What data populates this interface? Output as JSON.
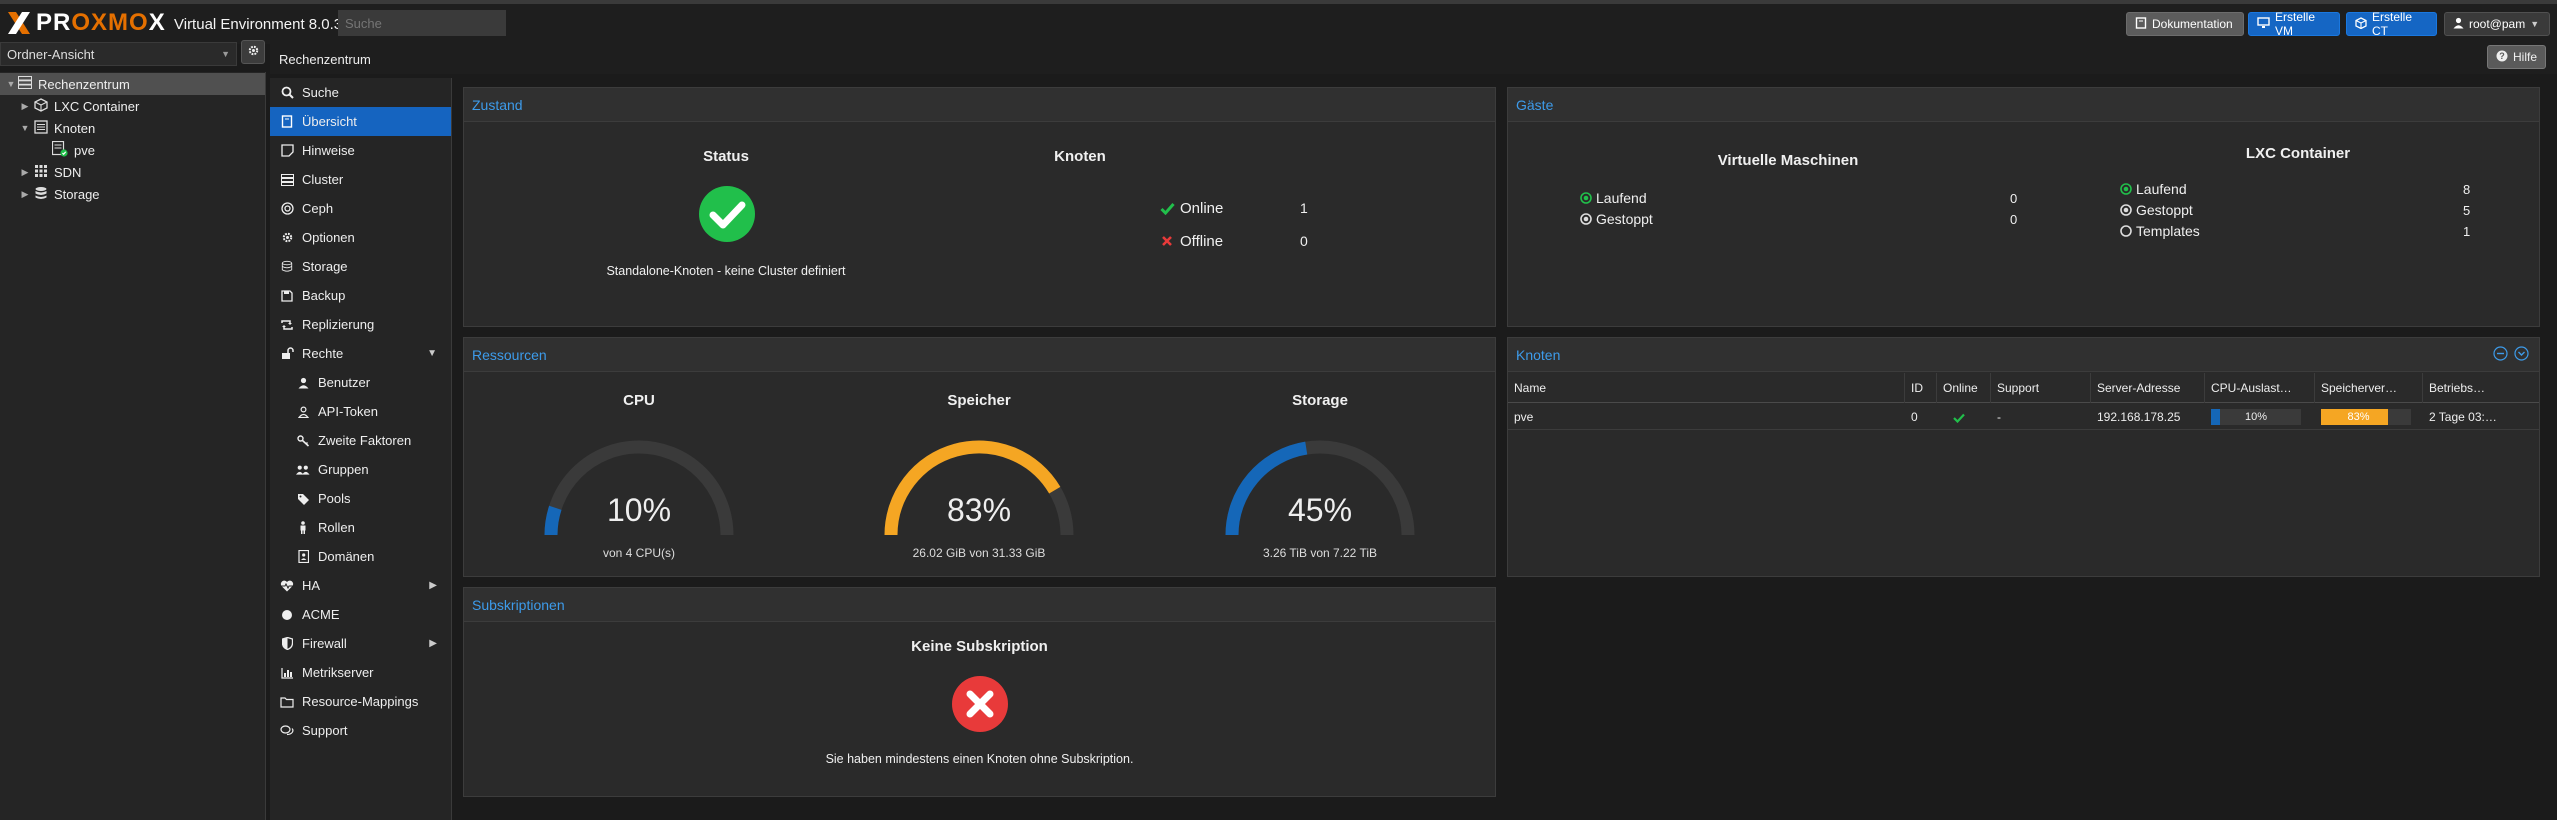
{
  "topbar": {
    "logo_text_a": "PR",
    "logo_text_b": "OXMO",
    "logo_text_c": "X",
    "product": "Virtual Environment 8.0.3",
    "search_placeholder": "Suche",
    "docs_button": "Dokumentation",
    "create_vm_button": "Erstelle VM",
    "create_ct_button": "Erstelle CT",
    "user_button": "root@pam"
  },
  "tree": {
    "view_select": "Ordner-Ansicht",
    "items": [
      {
        "label": "Rechenzentrum"
      },
      {
        "label": "LXC Container"
      },
      {
        "label": "Knoten"
      },
      {
        "label": "pve"
      },
      {
        "label": "SDN"
      },
      {
        "label": "Storage"
      }
    ]
  },
  "breadcrumb": "Rechenzentrum",
  "help_button": "Hilfe",
  "nav": {
    "items": [
      {
        "label": "Suche",
        "icon": "search-icon"
      },
      {
        "label": "Übersicht",
        "icon": "book-icon"
      },
      {
        "label": "Hinweise",
        "icon": "note-icon"
      },
      {
        "label": "Cluster",
        "icon": "server-icon"
      },
      {
        "label": "Ceph",
        "icon": "ceph-icon"
      },
      {
        "label": "Optionen",
        "icon": "gear-icon"
      },
      {
        "label": "Storage",
        "icon": "database-icon"
      },
      {
        "label": "Backup",
        "icon": "floppy-icon"
      },
      {
        "label": "Replizierung",
        "icon": "retweet-icon"
      },
      {
        "label": "Rechte",
        "icon": "unlock-icon"
      },
      {
        "label": "Benutzer",
        "icon": "user-icon"
      },
      {
        "label": "API-Token",
        "icon": "user-outline-icon"
      },
      {
        "label": "Zweite Faktoren",
        "icon": "key-icon"
      },
      {
        "label": "Gruppen",
        "icon": "users-icon"
      },
      {
        "label": "Pools",
        "icon": "tags-icon"
      },
      {
        "label": "Rollen",
        "icon": "male-icon"
      },
      {
        "label": "Domänen",
        "icon": "address-book-icon"
      },
      {
        "label": "HA",
        "icon": "heartbeat-icon"
      },
      {
        "label": "ACME",
        "icon": "certificate-icon"
      },
      {
        "label": "Firewall",
        "icon": "shield-icon"
      },
      {
        "label": "Metrikserver",
        "icon": "chart-icon"
      },
      {
        "label": "Resource-Mappings",
        "icon": "folder-icon"
      },
      {
        "label": "Support",
        "icon": "comments-icon"
      }
    ]
  },
  "zustand": {
    "title": "Zustand",
    "status_heading": "Status",
    "status_text": "Standalone-Knoten - keine Cluster definiert",
    "nodes_heading": "Knoten",
    "online_label": "Online",
    "online_value": "1",
    "offline_label": "Offline",
    "offline_value": "0"
  },
  "gaeste": {
    "title": "Gäste",
    "vm_heading": "Virtuelle Maschinen",
    "vm_running_label": "Laufend",
    "vm_running_value": "0",
    "vm_stopped_label": "Gestoppt",
    "vm_stopped_value": "0",
    "ct_heading": "LXC Container",
    "ct_running_label": "Laufend",
    "ct_running_value": "8",
    "ct_stopped_label": "Gestoppt",
    "ct_stopped_value": "5",
    "ct_templates_label": "Templates",
    "ct_templates_value": "1"
  },
  "ressourcen": {
    "title": "Ressourcen",
    "cpu_heading": "CPU",
    "cpu_value": "10%",
    "cpu_fraction": 0.1,
    "cpu_sub": "von 4 CPU(s)",
    "mem_heading": "Speicher",
    "mem_value": "83%",
    "mem_fraction": 0.83,
    "mem_sub": "26.02 GiB von 31.33 GiB",
    "storage_heading": "Storage",
    "storage_value": "45%",
    "storage_fraction": 0.45,
    "storage_sub": "3.26 TiB von 7.22 TiB",
    "color_low": "#1567b8",
    "color_high": "#f5a623",
    "color_track": "#3a3a3a"
  },
  "knoten": {
    "title": "Knoten",
    "columns": [
      "Name",
      "ID",
      "Online",
      "Support",
      "Server-Adresse",
      "CPU-Auslast…",
      "Speicherver…",
      "Betriebs…"
    ],
    "row": {
      "name": "pve",
      "id": "0",
      "support": "-",
      "address": "192.168.178.25",
      "cpu": "10%",
      "cpu_fraction": 0.1,
      "mem": "83%",
      "mem_fraction": 0.83,
      "uptime": "2 Tage 03:…"
    }
  },
  "subskriptionen": {
    "title": "Subskriptionen",
    "heading": "Keine Subskription",
    "text": "Sie haben mindestens einen Knoten ohne Subskription."
  }
}
